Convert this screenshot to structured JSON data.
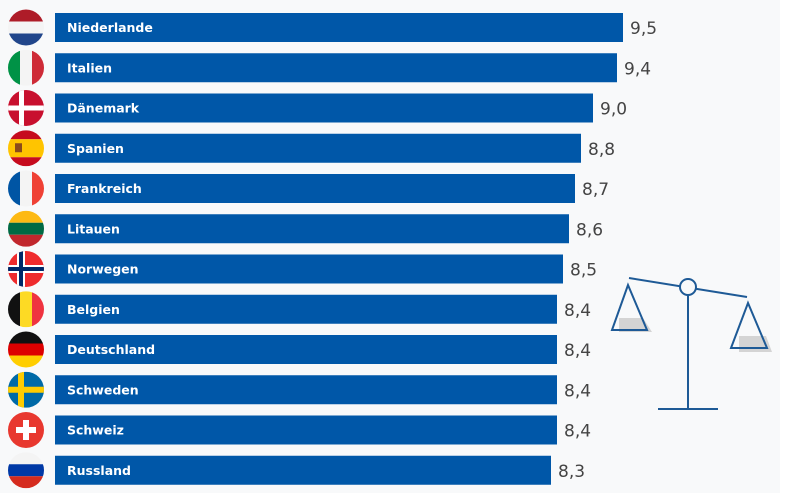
{
  "chart_data": {
    "type": "bar",
    "orientation": "horizontal",
    "categories": [
      "Niederlande",
      "Italien",
      "Dänemark",
      "Spanien",
      "Frankreich",
      "Litauen",
      "Norwegen",
      "Belgien",
      "Deutschland",
      "Schweden",
      "Schweiz",
      "Russland"
    ],
    "values": [
      9.5,
      9.4,
      9.0,
      8.8,
      8.7,
      8.6,
      8.5,
      8.4,
      8.4,
      8.4,
      8.4,
      8.3
    ],
    "value_labels": [
      "9,5",
      "9,4",
      "9,0",
      "8,8",
      "8,7",
      "8,6",
      "8,5",
      "8,4",
      "8,4",
      "8,4",
      "8,4",
      "8,3"
    ],
    "flags": [
      "nl",
      "it",
      "dk",
      "es",
      "fr",
      "lt",
      "no",
      "be",
      "de",
      "se",
      "ch",
      "ru"
    ],
    "bar_color": "#0057a8",
    "grid": false,
    "legend": "none",
    "decoration": "balance-scale-icon"
  }
}
